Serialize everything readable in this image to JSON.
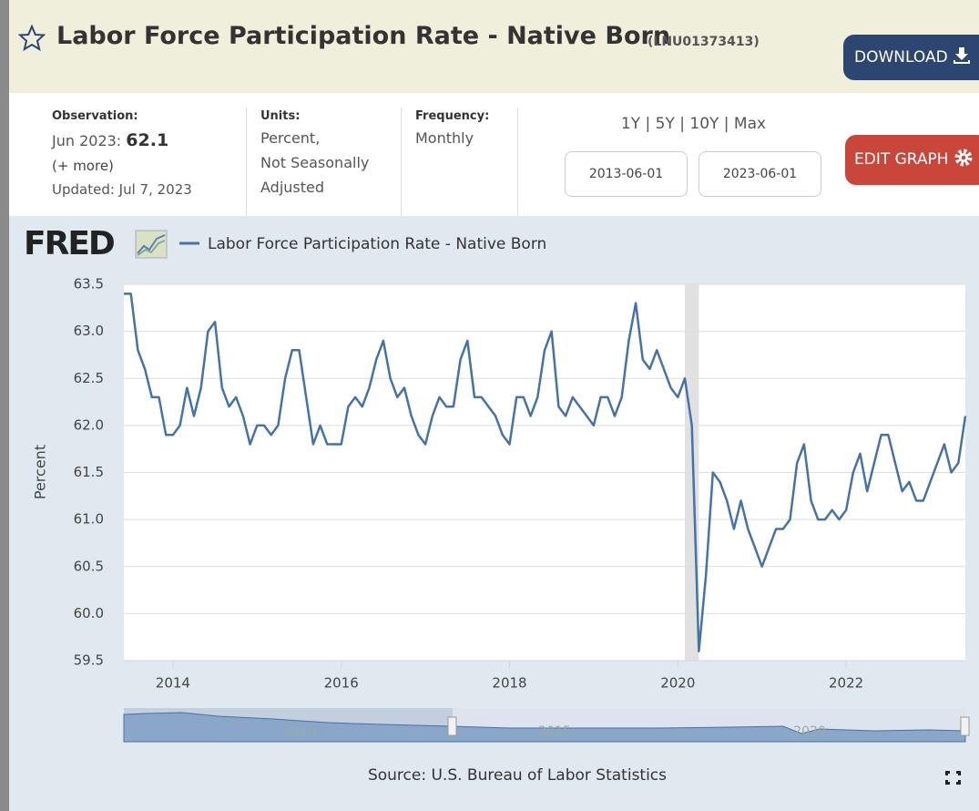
{
  "header": {
    "title": "Labor Force Participation Rate - Native Born",
    "series_id": "(LNU01373413)",
    "download": "DOWNLOAD"
  },
  "info": {
    "observation": {
      "label": "Observation:",
      "date": "Jun 2023:",
      "value": "62.1",
      "more": "(+ more)",
      "updated": "Updated: Jul 7, 2023"
    },
    "units": {
      "label": "Units:",
      "lines": [
        "Percent,",
        "Not Seasonally",
        "Adjusted"
      ]
    },
    "frequency": {
      "label": "Frequency:",
      "value": "Monthly"
    },
    "ranges": "1Y | 5Y | 10Y | Max",
    "start_date": "2013-06-01",
    "end_date": "2023-06-01",
    "edit": "EDIT GRAPH"
  },
  "logo": "FRED",
  "chart_data": {
    "type": "line",
    "ylabel": "Percent",
    "source": "Source: U.S. Bureau of Labor Statistics",
    "x": [
      "2013-06",
      "2013-07",
      "2013-08",
      "2013-09",
      "2013-10",
      "2013-11",
      "2013-12",
      "2014-01",
      "2014-02",
      "2014-03",
      "2014-04",
      "2014-05",
      "2014-06",
      "2014-07",
      "2014-08",
      "2014-09",
      "2014-10",
      "2014-11",
      "2014-12",
      "2015-01",
      "2015-02",
      "2015-03",
      "2015-04",
      "2015-05",
      "2015-06",
      "2015-07",
      "2015-08",
      "2015-09",
      "2015-10",
      "2015-11",
      "2015-12",
      "2016-01",
      "2016-02",
      "2016-03",
      "2016-04",
      "2016-05",
      "2016-06",
      "2016-07",
      "2016-08",
      "2016-09",
      "2016-10",
      "2016-11",
      "2016-12",
      "2017-01",
      "2017-02",
      "2017-03",
      "2017-04",
      "2017-05",
      "2017-06",
      "2017-07",
      "2017-08",
      "2017-09",
      "2017-10",
      "2017-11",
      "2017-12",
      "2018-01",
      "2018-02",
      "2018-03",
      "2018-04",
      "2018-05",
      "2018-06",
      "2018-07",
      "2018-08",
      "2018-09",
      "2018-10",
      "2018-11",
      "2018-12",
      "2019-01",
      "2019-02",
      "2019-03",
      "2019-04",
      "2019-05",
      "2019-06",
      "2019-07",
      "2019-08",
      "2019-09",
      "2019-10",
      "2019-11",
      "2019-12",
      "2020-01",
      "2020-02",
      "2020-03",
      "2020-04",
      "2020-05",
      "2020-06",
      "2020-07",
      "2020-08",
      "2020-09",
      "2020-10",
      "2020-11",
      "2020-12",
      "2021-01",
      "2021-02",
      "2021-03",
      "2021-04",
      "2021-05",
      "2021-06",
      "2021-07",
      "2021-08",
      "2021-09",
      "2021-10",
      "2021-11",
      "2021-12",
      "2022-01",
      "2022-02",
      "2022-03",
      "2022-04",
      "2022-05",
      "2022-06",
      "2022-07",
      "2022-08",
      "2022-09",
      "2022-10",
      "2022-11",
      "2022-12",
      "2023-01",
      "2023-02",
      "2023-03",
      "2023-04",
      "2023-05",
      "2023-06"
    ],
    "series": [
      {
        "name": "Labor Force Participation Rate - Native Born",
        "color": "#4572a7",
        "values": [
          63.4,
          63.4,
          62.8,
          62.6,
          62.3,
          62.3,
          61.9,
          61.9,
          62.0,
          62.4,
          62.1,
          62.4,
          63.0,
          63.1,
          62.4,
          62.2,
          62.3,
          62.1,
          61.8,
          62.0,
          62.0,
          61.9,
          62.0,
          62.5,
          62.8,
          62.8,
          62.3,
          61.8,
          62.0,
          61.8,
          61.8,
          61.8,
          62.2,
          62.3,
          62.2,
          62.4,
          62.7,
          62.9,
          62.5,
          62.3,
          62.4,
          62.1,
          61.9,
          61.8,
          62.1,
          62.3,
          62.2,
          62.2,
          62.7,
          62.9,
          62.3,
          62.3,
          62.2,
          62.1,
          61.9,
          61.8,
          62.3,
          62.3,
          62.1,
          62.3,
          62.8,
          63.0,
          62.2,
          62.1,
          62.3,
          62.2,
          62.1,
          62.0,
          62.3,
          62.3,
          62.1,
          62.3,
          62.9,
          63.3,
          62.7,
          62.6,
          62.8,
          62.6,
          62.4,
          62.3,
          62.5,
          62.0,
          59.6,
          60.4,
          61.5,
          61.4,
          61.2,
          60.9,
          61.2,
          60.9,
          60.7,
          60.5,
          60.7,
          60.9,
          60.9,
          61.0,
          61.6,
          61.8,
          61.2,
          61.0,
          61.0,
          61.1,
          61.0,
          61.1,
          61.5,
          61.7,
          61.3,
          61.6,
          61.9,
          61.9,
          61.6,
          61.3,
          61.4,
          61.2,
          61.2,
          61.4,
          61.6,
          61.8,
          61.5,
          61.6,
          62.1
        ]
      }
    ],
    "xlim": [
      "2013-06",
      "2023-06"
    ],
    "xticks": [
      2014,
      2016,
      2018,
      2020,
      2022
    ],
    "ylim": [
      59.5,
      63.5
    ],
    "yticks": [
      {
        "value": 59.5,
        "label": "59.5"
      },
      {
        "value": 60,
        "label": "60.0"
      },
      60.5,
      {
        "value": 61,
        "label": "61.0"
      },
      61.5,
      {
        "value": 62,
        "label": "62.0"
      },
      62.5,
      {
        "value": 63,
        "label": "63.0"
      },
      63.5
    ],
    "shading": [
      "2020-02",
      "2020-04"
    ],
    "grid": true,
    "navigator": {
      "labels": [
        "2010",
        "2015",
        "2020"
      ]
    }
  }
}
